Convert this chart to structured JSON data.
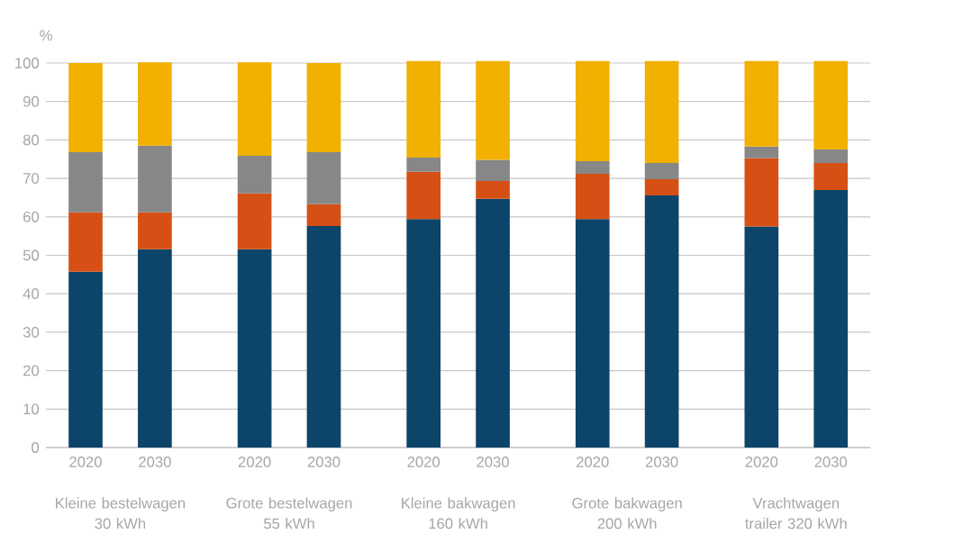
{
  "chart_data": {
    "type": "bar",
    "stacked": true,
    "ylabel": "%",
    "categories": [
      "2020",
      "2030",
      "2020",
      "2030",
      "2020",
      "2030",
      "2020",
      "2030",
      "2020",
      "2030"
    ],
    "series": [
      {
        "color": "#0d4469",
        "values": [
          45.7,
          51.6,
          51.6,
          57.6,
          59.4,
          64.7,
          59.4,
          65.6,
          57.5,
          67.0
        ]
      },
      {
        "color": "#d65016",
        "values": [
          15.5,
          9.6,
          14.5,
          5.7,
          12.3,
          4.6,
          11.8,
          4.2,
          17.8,
          7.0
        ]
      },
      {
        "color": "#878787",
        "values": [
          15.6,
          17.3,
          9.8,
          13.5,
          3.7,
          5.5,
          3.3,
          4.2,
          3.0,
          3.5
        ]
      },
      {
        "color": "#f2b000",
        "values": [
          23.2,
          21.7,
          24.3,
          23.2,
          25.1,
          25.7,
          26.0,
          26.5,
          22.2,
          23.0
        ]
      }
    ],
    "ylim": [
      0,
      101
    ],
    "yticks": [
      0,
      10,
      20,
      30,
      40,
      50,
      60,
      70,
      80,
      90,
      100
    ],
    "grid": "y",
    "annotations": [
      "Kleine bestelwagen 30 kWh",
      "Grote bestelwagen 55 kWh",
      "Kleine bakwagen 160 kWh",
      "Grote bakwagen 200 kWh",
      "Vrachtwagen trailer 320 kWh"
    ]
  }
}
